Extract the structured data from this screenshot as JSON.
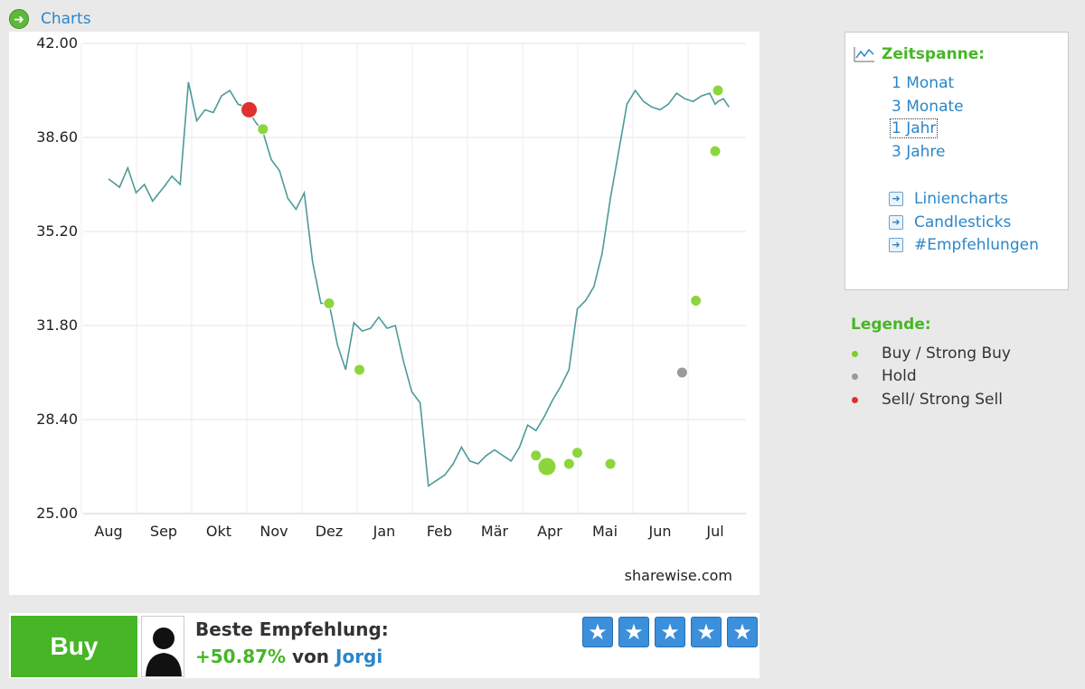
{
  "header": {
    "charts_label": "Charts",
    "icon": "arrow-right-circle-icon"
  },
  "brand": "sharewise.com",
  "chart_data": {
    "type": "line",
    "title": "",
    "xlabel": "",
    "ylabel": "",
    "ylim": [
      25.0,
      42.0
    ],
    "yticks": [
      "42.00",
      "38.60",
      "35.20",
      "31.80",
      "28.40",
      "25.00"
    ],
    "xticks": [
      "Aug",
      "Sep",
      "Okt",
      "Nov",
      "Dez",
      "Jan",
      "Feb",
      "Mär",
      "Apr",
      "Mai",
      "Jun",
      "Jul"
    ],
    "grid": true,
    "line_color": "#4d9a98",
    "series": [
      {
        "x": [
          0.0,
          0.2,
          0.35,
          0.5,
          0.65,
          0.8,
          1.0,
          1.15,
          1.3,
          1.45,
          1.6,
          1.75,
          1.9,
          2.05,
          2.2,
          2.35,
          2.5,
          2.65,
          2.8,
          2.95,
          3.1,
          3.25,
          3.4,
          3.55,
          3.7,
          3.85,
          4.0,
          4.15,
          4.3,
          4.45,
          4.6,
          4.75,
          4.9,
          5.05,
          5.2,
          5.35,
          5.5,
          5.65,
          5.8,
          5.95,
          6.1,
          6.25,
          6.4,
          6.55,
          6.7,
          6.85,
          7.0,
          7.15,
          7.3,
          7.45,
          7.6,
          7.75,
          7.9,
          8.05,
          8.2,
          8.35,
          8.5,
          8.65,
          8.8,
          8.95,
          9.1,
          9.25,
          9.4,
          9.55,
          9.7,
          9.85,
          10.0,
          10.15,
          10.3,
          10.45,
          10.6,
          10.75,
          10.9,
          11.0,
          11.05,
          11.15,
          11.25
        ],
        "values": [
          37.1,
          36.8,
          37.5,
          36.6,
          36.9,
          36.3,
          36.8,
          37.2,
          36.9,
          40.6,
          39.2,
          39.6,
          39.5,
          40.1,
          40.3,
          39.8,
          39.7,
          39.2,
          38.8,
          37.8,
          37.4,
          36.4,
          36.0,
          36.6,
          34.1,
          32.6,
          32.6,
          31.1,
          30.2,
          31.9,
          31.6,
          31.7,
          32.1,
          31.7,
          31.8,
          30.5,
          29.4,
          29.0,
          26.0,
          26.2,
          26.4,
          26.8,
          27.4,
          26.9,
          26.8,
          27.1,
          27.3,
          27.1,
          26.9,
          27.4,
          28.2,
          28.0,
          28.5,
          29.1,
          29.6,
          30.2,
          32.4,
          32.7,
          33.2,
          34.4,
          36.4,
          38.1,
          39.8,
          40.3,
          39.9,
          39.7,
          39.6,
          39.8,
          40.2,
          40.0,
          39.9,
          40.1,
          40.2,
          39.8,
          39.9,
          40.0,
          39.7
        ]
      }
    ],
    "markers": [
      {
        "x": 2.55,
        "y": 39.6,
        "kind": "Sell",
        "color": "#e03030"
      },
      {
        "x": 2.8,
        "y": 38.9,
        "kind": "Buy",
        "color": "#8cd63c"
      },
      {
        "x": 4.0,
        "y": 32.6,
        "kind": "Buy",
        "color": "#8cd63c"
      },
      {
        "x": 4.55,
        "y": 30.2,
        "kind": "Buy",
        "color": "#8cd63c"
      },
      {
        "x": 7.75,
        "y": 27.1,
        "kind": "Buy",
        "color": "#8cd63c"
      },
      {
        "x": 7.95,
        "y": 26.7,
        "kind": "Buy",
        "color": "#8cd63c"
      },
      {
        "x": 8.35,
        "y": 26.8,
        "kind": "Buy",
        "color": "#8cd63c"
      },
      {
        "x": 8.5,
        "y": 27.2,
        "kind": "Buy",
        "color": "#8cd63c"
      },
      {
        "x": 9.1,
        "y": 26.8,
        "kind": "Buy",
        "color": "#8cd63c"
      },
      {
        "x": 10.4,
        "y": 30.1,
        "kind": "Hold",
        "color": "#9a9a9a"
      },
      {
        "x": 10.65,
        "y": 32.7,
        "kind": "Buy",
        "color": "#8cd63c"
      },
      {
        "x": 11.0,
        "y": 38.1,
        "kind": "Buy",
        "color": "#8cd63c"
      },
      {
        "x": 11.05,
        "y": 40.3,
        "kind": "Buy",
        "color": "#8cd63c"
      }
    ]
  },
  "sidebar": {
    "zeitspanne_title": "Zeitspanne:",
    "zeitspanne_icon": "line-chart-icon",
    "ranges": [
      "1 Monat",
      "3 Monate",
      "1 Jahr",
      "3 Jahre"
    ],
    "selected_range": "1 Jahr",
    "chart_links": [
      "Liniencharts",
      "Candlesticks",
      "#Empfehlungen"
    ]
  },
  "legend": {
    "title": "Legende:",
    "items": [
      {
        "label": "Buy / Strong Buy",
        "color": "#7fcf2f"
      },
      {
        "label": "Hold",
        "color": "#9a9a9a"
      },
      {
        "label": "Sell/ Strong Sell",
        "color": "#e03030"
      }
    ]
  },
  "recommendation": {
    "button_label": "Buy",
    "title": "Beste Empfehlung:",
    "percent": "+50.87%",
    "von": "von",
    "user": "Jorgi",
    "rating": 5,
    "star_color": "#3b8fdb"
  }
}
